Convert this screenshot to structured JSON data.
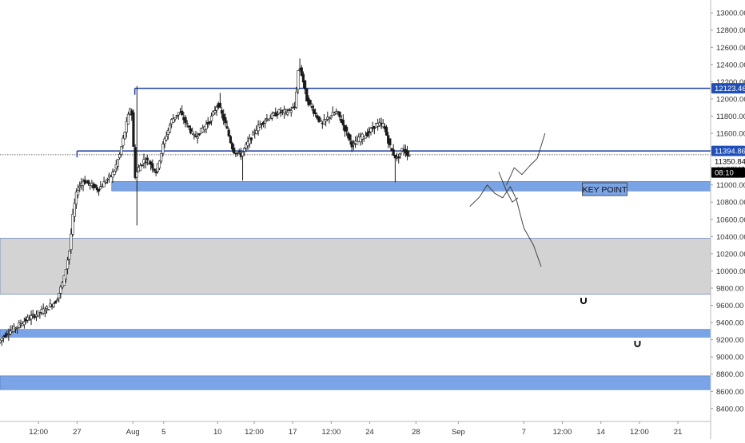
{
  "chart_data": {
    "type": "candlestick",
    "instrument_note": "",
    "y_axis": {
      "min": 8250,
      "max": 13150,
      "ticks": [
        13000,
        12800,
        12600,
        12400,
        12200,
        12000,
        11800,
        11600,
        11400,
        11200,
        11000,
        10800,
        10600,
        10400,
        10200,
        10000,
        9800,
        9600,
        9400,
        9200,
        9000,
        8800,
        8600,
        8400
      ],
      "tick_labels": [
        "13000.00",
        "12800.00",
        "12600.00",
        "12400.00",
        "12200.00",
        "12000.00",
        "11800.00",
        "11600.00",
        "11400.00",
        "11200.00",
        "11000.00",
        "10800.00",
        "10600.00",
        "10400.00",
        "10200.00",
        "10000.00",
        "9800.00",
        "9600.00",
        "9400.00",
        "9200.00",
        "9000.00",
        "8800.00",
        "8600.00",
        "8400.00"
      ]
    },
    "x_axis": {
      "labels": [
        {
          "text": "12:00",
          "t": 1
        },
        {
          "text": "27",
          "t": 2
        },
        {
          "text": "Aug",
          "t": 3.45
        },
        {
          "text": "5",
          "t": 4.25
        },
        {
          "text": "10",
          "t": 5.65
        },
        {
          "text": "12:00",
          "t": 6.6
        },
        {
          "text": "17",
          "t": 7.6
        },
        {
          "text": "12:00",
          "t": 8.6
        },
        {
          "text": "24",
          "t": 9.6
        },
        {
          "text": "28",
          "t": 10.8
        },
        {
          "text": "Sep",
          "t": 11.9
        },
        {
          "text": "7",
          "t": 13.6
        },
        {
          "text": "12:00",
          "t": 14.6
        },
        {
          "text": "14",
          "t": 15.6
        },
        {
          "text": "12:00",
          "t": 16.6
        },
        {
          "text": "21",
          "t": 17.6
        }
      ],
      "t_min": 0,
      "t_max": 18.45
    },
    "price_path": [
      [
        0.0,
        9170
      ],
      [
        0.15,
        9250
      ],
      [
        0.3,
        9300
      ],
      [
        0.5,
        9360
      ],
      [
        0.75,
        9440
      ],
      [
        1.0,
        9500
      ],
      [
        1.25,
        9560
      ],
      [
        1.5,
        9650
      ],
      [
        1.7,
        9900
      ],
      [
        1.85,
        10250
      ],
      [
        1.95,
        10700
      ],
      [
        2.05,
        10950
      ],
      [
        2.2,
        11050
      ],
      [
        2.4,
        11000
      ],
      [
        2.6,
        10950
      ],
      [
        2.8,
        11050
      ],
      [
        3.0,
        11150
      ],
      [
        3.15,
        11350
      ],
      [
        3.3,
        11650
      ],
      [
        3.45,
        11950
      ],
      [
        3.55,
        11100
      ],
      [
        3.65,
        11200
      ],
      [
        3.8,
        11300
      ],
      [
        3.95,
        11250
      ],
      [
        4.1,
        11150
      ],
      [
        4.3,
        11500
      ],
      [
        4.5,
        11750
      ],
      [
        4.7,
        11850
      ],
      [
        4.9,
        11700
      ],
      [
        5.1,
        11550
      ],
      [
        5.3,
        11650
      ],
      [
        5.5,
        11750
      ],
      [
        5.7,
        11950
      ],
      [
        5.9,
        11700
      ],
      [
        6.1,
        11400
      ],
      [
        6.3,
        11350
      ],
      [
        6.5,
        11500
      ],
      [
        6.7,
        11650
      ],
      [
        6.9,
        11750
      ],
      [
        7.1,
        11800
      ],
      [
        7.3,
        11850
      ],
      [
        7.5,
        11850
      ],
      [
        7.7,
        11900
      ],
      [
        7.8,
        12400
      ],
      [
        7.9,
        12250
      ],
      [
        8.0,
        12000
      ],
      [
        8.2,
        11850
      ],
      [
        8.4,
        11700
      ],
      [
        8.6,
        11800
      ],
      [
        8.8,
        11850
      ],
      [
        9.0,
        11650
      ],
      [
        9.2,
        11450
      ],
      [
        9.4,
        11550
      ],
      [
        9.6,
        11600
      ],
      [
        9.8,
        11700
      ],
      [
        10.0,
        11700
      ],
      [
        10.2,
        11400
      ],
      [
        10.35,
        11300
      ],
      [
        10.5,
        11420
      ],
      [
        10.65,
        11350
      ]
    ],
    "key_highs": [
      [
        3.55,
        12150
      ],
      [
        7.78,
        12470
      ],
      [
        5.7,
        12070
      ]
    ],
    "key_lows": [
      [
        3.55,
        10530
      ],
      [
        10.25,
        11030
      ],
      [
        6.3,
        11050
      ]
    ],
    "zones": [
      {
        "label": "gray-zone",
        "from": 9730,
        "to": 10380,
        "t_start": 0,
        "color": "#d3d3d3"
      },
      {
        "label": "blue-zone-1",
        "from": 10930,
        "to": 11040,
        "t_start": 2.9,
        "color": "#7aa4e6"
      },
      {
        "label": "blue-zone-2",
        "from": 9230,
        "to": 9320,
        "t_start": 0,
        "color": "#7aa4e6"
      },
      {
        "label": "blue-zone-3",
        "from": 8620,
        "to": 8780,
        "t_start": 0,
        "color": "#7aa4e6"
      }
    ],
    "lines": [
      {
        "name": "resistance",
        "price": 12123.46,
        "t_start": 3.5,
        "color": "#1e3fa8"
      },
      {
        "name": "support",
        "price": 11394.86,
        "t_start": 2.0,
        "color": "#1e3fa8"
      }
    ],
    "dotted_price": 11350.84,
    "annotations": [
      {
        "text": "KEY POINT",
        "t": 15.7,
        "price": 10950
      }
    ],
    "price_labels": [
      {
        "text": "12123.46",
        "price": 12123.46,
        "bg": "#1f4fb8",
        "color": "#ffffff"
      },
      {
        "text": "11394.86",
        "price": 11394.86,
        "bg": "#1f4fb8",
        "color": "#ffffff"
      },
      {
        "text": "11350.84",
        "price": 11350.84,
        "bg": "#ffffff",
        "color": "#000000"
      },
      {
        "text": "08:10",
        "price": 11200,
        "bg": "#000000",
        "color": "#ffffff"
      }
    ],
    "projection_up": [
      [
        12.2,
        10750
      ],
      [
        12.45,
        10860
      ],
      [
        12.65,
        11000
      ],
      [
        12.85,
        10900
      ],
      [
        13.05,
        10850
      ],
      [
        13.25,
        10980
      ],
      [
        13.4,
        10840
      ],
      [
        13.6,
        10500
      ],
      [
        13.85,
        10300
      ],
      [
        14.05,
        10050
      ]
    ],
    "projection_alt": [
      [
        13.15,
        11000
      ],
      [
        13.35,
        11200
      ],
      [
        13.55,
        11120
      ],
      [
        13.75,
        11220
      ],
      [
        13.95,
        11310
      ],
      [
        14.15,
        11600
      ]
    ],
    "projection_mid": [
      [
        12.95,
        11150
      ],
      [
        13.15,
        10930
      ],
      [
        13.3,
        10800
      ],
      [
        13.45,
        10850
      ]
    ],
    "magnets": [
      {
        "t": 15.15,
        "price": 9660
      },
      {
        "t": 16.55,
        "price": 9160
      }
    ],
    "grid": false,
    "colors": {
      "candle": "#1a1a1a",
      "axis_text": "#333333"
    }
  }
}
